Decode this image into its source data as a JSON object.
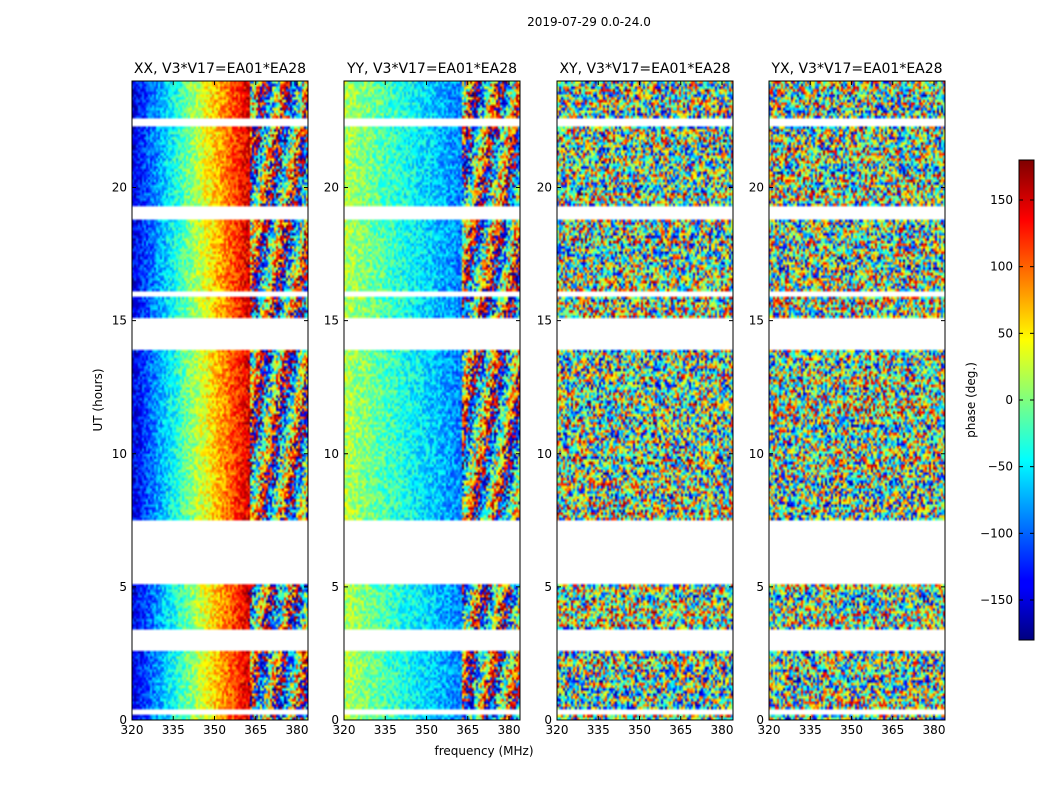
{
  "suptitle": "2019-07-29 0.0-24.0",
  "chart_data": {
    "type": "heatmap",
    "colormap": "jet",
    "xlabel": "frequency (MHz)",
    "ylabel": "UT (hours)",
    "xlim": [
      320,
      384
    ],
    "ylim": [
      0,
      24
    ],
    "xticks": [
      320,
      335,
      350,
      365,
      380
    ],
    "yticks": [
      0,
      5,
      10,
      15,
      20
    ],
    "colorbar": {
      "label": "phase (deg.)",
      "range": [
        -180,
        180
      ],
      "ticks": [
        -150,
        -100,
        -50,
        0,
        50,
        100,
        150
      ],
      "tick_labels": [
        "−150",
        "−100",
        "−50",
        "0",
        "50",
        "100",
        "150"
      ]
    },
    "empty_ut_ranges": [
      [
        0.2,
        0.45
      ],
      [
        2.65,
        3.35
      ],
      [
        5.1,
        7.55
      ],
      [
        13.9,
        15.05
      ],
      [
        15.9,
        16.05
      ],
      [
        18.8,
        19.25
      ],
      [
        22.3,
        22.55
      ]
    ],
    "panels": [
      {
        "title": "XX, V3*V17=EA01*EA28",
        "pattern": "gradient",
        "phase_low_mhz": -145,
        "phase_high_mhz": 150
      },
      {
        "title": "YY, V3*V17=EA01*EA28",
        "pattern": "gradient",
        "phase_low_mhz": 20,
        "phase_high_mhz": -90
      },
      {
        "title": "XY, V3*V17=EA01*EA28",
        "pattern": "noise"
      },
      {
        "title": "YX, V3*V17=EA01*EA28",
        "pattern": "noise"
      }
    ]
  }
}
